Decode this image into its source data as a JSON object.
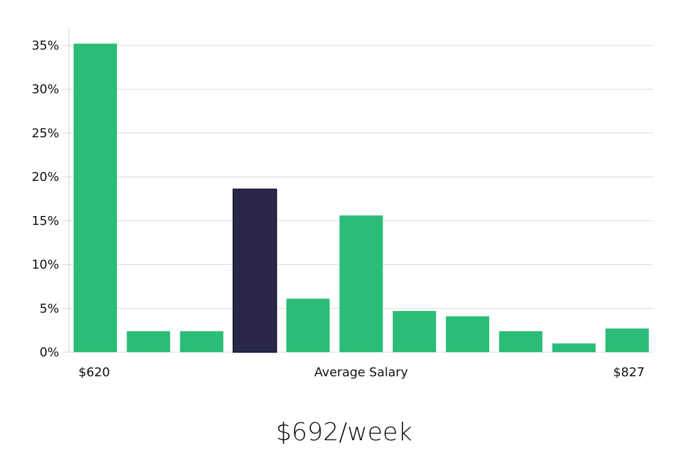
{
  "chart_data": {
    "type": "bar",
    "title": "",
    "xlabel": "Average Salary",
    "ylabel": "",
    "ylim": [
      0,
      37
    ],
    "y_ticks": [
      0,
      5,
      10,
      15,
      20,
      25,
      30,
      35
    ],
    "y_tick_labels": [
      "0%",
      "5%",
      "10%",
      "15%",
      "20%",
      "25%",
      "30%",
      "35%"
    ],
    "x_range_labels": {
      "min": "$620",
      "max": "$827"
    },
    "values": [
      35.2,
      2.4,
      2.4,
      18.6,
      6.1,
      15.6,
      4.7,
      4.1,
      2.4,
      1.0,
      2.7
    ],
    "highlight_index": 3,
    "grid": true,
    "colors": {
      "bar": "#2bbd77",
      "highlight": "#2a2747",
      "highlight_stroke": "#111133"
    }
  },
  "summary": {
    "value": "$692/week"
  }
}
